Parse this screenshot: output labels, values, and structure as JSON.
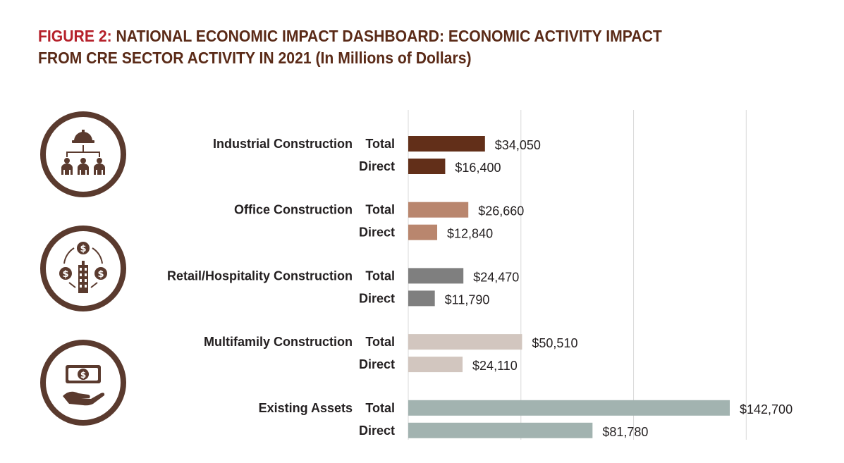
{
  "title": {
    "figure_label": "FIGURE 2:",
    "line1": "NATIONAL ECONOMIC IMPACT DASHBOARD: ECONOMIC ACTIVITY IMPACT",
    "line2": "FROM CRE SECTOR ACTIVITY IN 2021",
    "unit": "(In Millions of Dollars)"
  },
  "icons": [
    {
      "name": "construction-workers-icon"
    },
    {
      "name": "building-money-icon"
    },
    {
      "name": "hand-money-icon"
    }
  ],
  "colors": {
    "title_dark": "#5a2a17",
    "title_red": "#b5202a",
    "icon": "#5a3a2e",
    "grid": "#d9d9d9"
  },
  "chart_data": {
    "type": "bar",
    "orientation": "horizontal",
    "xlim": [
      0,
      150000
    ],
    "grid": true,
    "categories": [
      {
        "name": "Industrial Construction",
        "color": "#622f19",
        "bars": [
          {
            "label": "Total",
            "value": 34050,
            "text": "$34,050"
          },
          {
            "label": "Direct",
            "value": 16400,
            "text": "$16,400"
          }
        ]
      },
      {
        "name": "Office Construction",
        "color": "#b9866e",
        "bars": [
          {
            "label": "Total",
            "value": 26660,
            "text": "$26,660"
          },
          {
            "label": "Direct",
            "value": 12840,
            "text": "$12,840"
          }
        ]
      },
      {
        "name": "Retail/Hospitality Construction",
        "color": "#7f7f7f",
        "bars": [
          {
            "label": "Total",
            "value": 24470,
            "text": "$24,470"
          },
          {
            "label": "Direct",
            "value": 11790,
            "text": "$11,790"
          }
        ]
      },
      {
        "name": "Multifamily Construction",
        "color": "#d2c6bf",
        "bars": [
          {
            "label": "Total",
            "value": 50510,
            "text": "$50,510"
          },
          {
            "label": "Direct",
            "value": 24110,
            "text": "$24,110"
          }
        ]
      },
      {
        "name": "Existing Assets",
        "color": "#a2b3b0",
        "bars": [
          {
            "label": "Total",
            "value": 142700,
            "text": "$142,700"
          },
          {
            "label": "Direct",
            "value": 81780,
            "text": "$81,780"
          }
        ]
      }
    ]
  }
}
